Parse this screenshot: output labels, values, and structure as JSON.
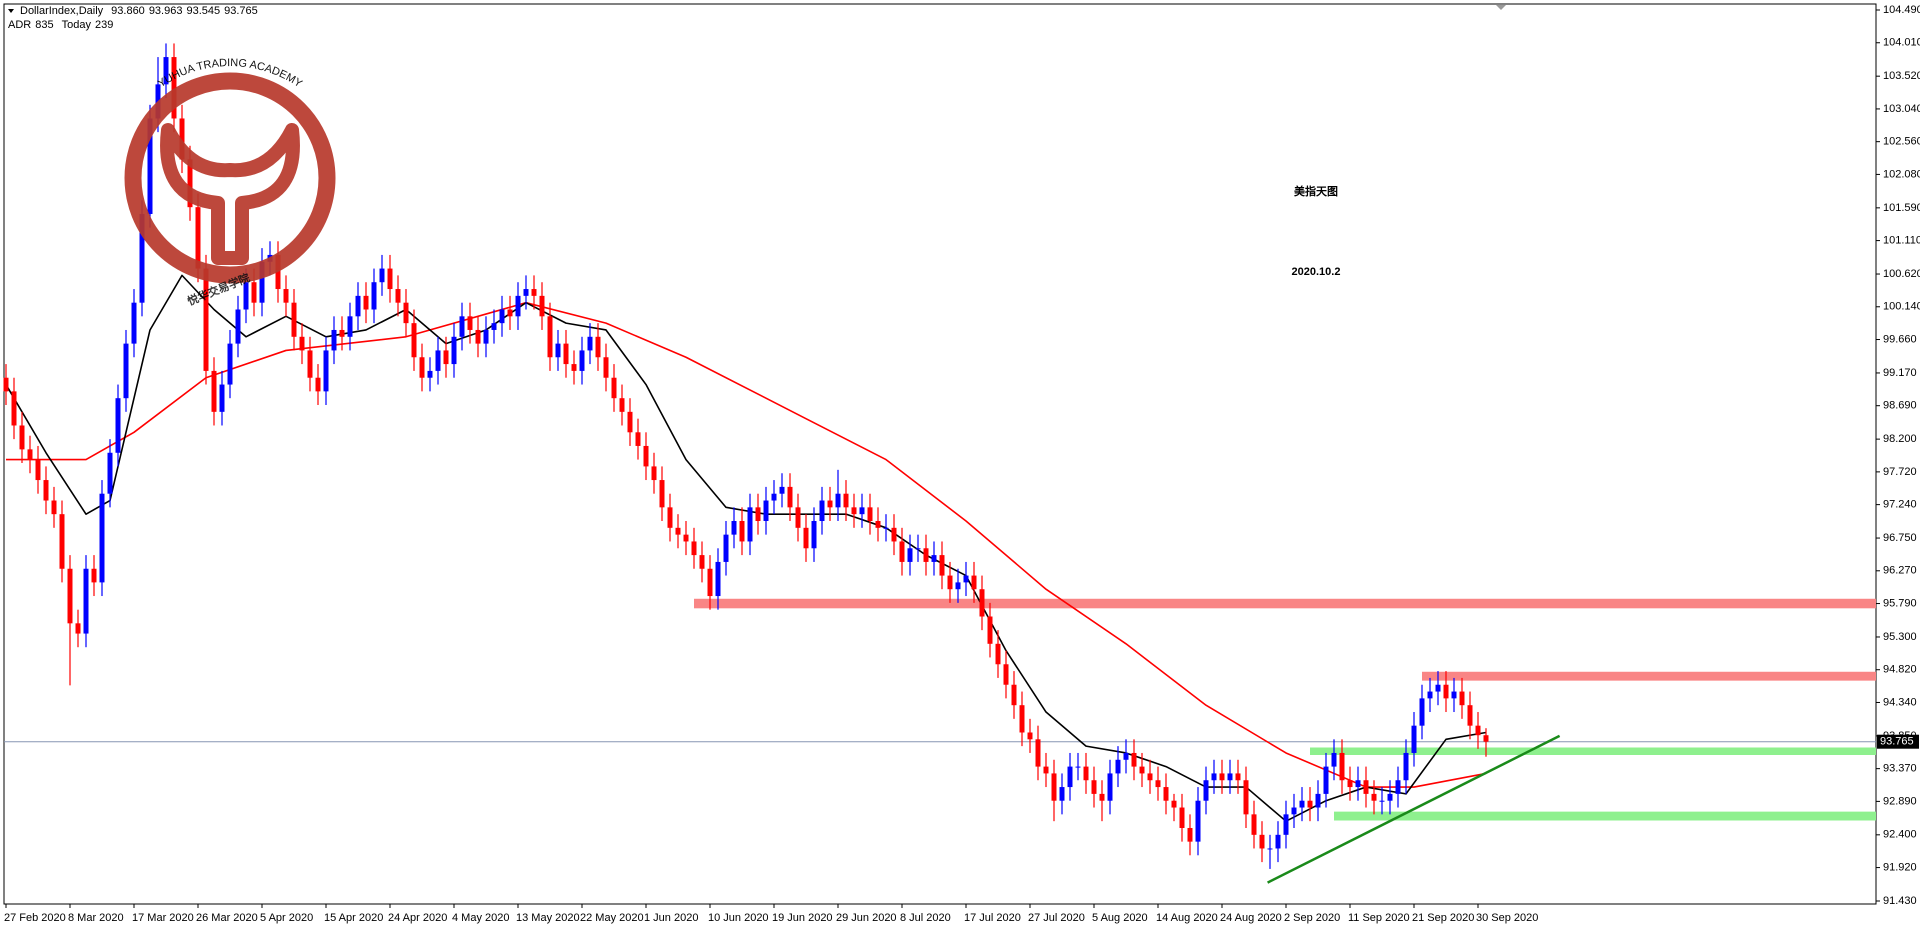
{
  "chart_data": {
    "type": "candlestick",
    "symbol": "DollarIndex,Daily",
    "ohlc_labels": [
      "93.860",
      "93.963",
      "93.545",
      "93.765"
    ],
    "indicators": [
      {
        "name": "ADR",
        "value": 835
      },
      {
        "name": "Today",
        "value": 239
      }
    ],
    "title": "美指天图",
    "subtitle": "2020.10.2",
    "up_color": "#0000ff",
    "down_color": "#ff0000",
    "ylim": [
      91.43,
      104.49
    ],
    "yticks": [
      {
        "value": 91.43,
        "label": "91.430"
      },
      {
        "value": 91.92,
        "label": "91.920"
      },
      {
        "value": 92.4,
        "label": "92.400"
      },
      {
        "value": 92.89,
        "label": "92.890"
      },
      {
        "value": 93.37,
        "label": "93.370"
      },
      {
        "value": 93.85,
        "label": "93.850"
      },
      {
        "value": 94.34,
        "label": "94.340"
      },
      {
        "value": 94.82,
        "label": "94.820"
      },
      {
        "value": 95.3,
        "label": "95.300"
      },
      {
        "value": 95.79,
        "label": "95.790"
      },
      {
        "value": 96.27,
        "label": "96.270"
      },
      {
        "value": 96.75,
        "label": "96.750"
      },
      {
        "value": 97.24,
        "label": "97.240"
      },
      {
        "value": 97.72,
        "label": "97.720"
      },
      {
        "value": 98.2,
        "label": "98.200"
      },
      {
        "value": 98.69,
        "label": "98.690"
      },
      {
        "value": 99.17,
        "label": "99.170"
      },
      {
        "value": 99.66,
        "label": "99.660"
      },
      {
        "value": 100.14,
        "label": "100.140"
      },
      {
        "value": 100.62,
        "label": "100.620"
      },
      {
        "value": 101.11,
        "label": "101.110"
      },
      {
        "value": 101.59,
        "label": "101.590"
      },
      {
        "value": 102.08,
        "label": "102.080"
      },
      {
        "value": 102.56,
        "label": "102.560"
      },
      {
        "value": 103.04,
        "label": "103.040"
      },
      {
        "value": 103.52,
        "label": "103.520"
      },
      {
        "value": 104.01,
        "label": "104.010"
      },
      {
        "value": 104.49,
        "label": "104.490"
      }
    ],
    "xticks": [
      {
        "value": 0,
        "label": "27 Feb 2020"
      },
      {
        "value": 8,
        "label": "8 Mar 2020"
      },
      {
        "value": 16,
        "label": "17 Mar 2020"
      },
      {
        "value": 24,
        "label": "26 Mar 2020"
      },
      {
        "value": 32,
        "label": "5 Apr 2020"
      },
      {
        "value": 40,
        "label": "15 Apr 2020"
      },
      {
        "value": 48,
        "label": "24 Apr 2020"
      },
      {
        "value": 56,
        "label": "4 May 2020"
      },
      {
        "value": 64,
        "label": "13 May 2020"
      },
      {
        "value": 72,
        "label": "22 May 2020"
      },
      {
        "value": 80,
        "label": "1 Jun 2020"
      },
      {
        "value": 88,
        "label": "10 Jun 2020"
      },
      {
        "value": 96,
        "label": "19 Jun 2020"
      },
      {
        "value": 104,
        "label": "29 Jun 2020"
      },
      {
        "value": 112,
        "label": "8 Jul 2020"
      },
      {
        "value": 120,
        "label": "17 Jul 2020"
      },
      {
        "value": 128,
        "label": "27 Jul 2020"
      },
      {
        "value": 136,
        "label": "5 Aug 2020"
      },
      {
        "value": 144,
        "label": "14 Aug 2020"
      },
      {
        "value": 152,
        "label": "24 Aug 2020"
      },
      {
        "value": 160,
        "label": "2 Sep 2020"
      },
      {
        "value": 168,
        "label": "11 Sep 2020"
      },
      {
        "value": 176,
        "label": "21 Sep 2020"
      },
      {
        "value": 184,
        "label": "30 Sep 2020"
      }
    ],
    "open": [
      99.1,
      98.9,
      98.4,
      98.05,
      97.9,
      97.6,
      97.3,
      97.1,
      96.3,
      95.5,
      95.35,
      96.3,
      96.1,
      97.4,
      98.0,
      98.8,
      99.6,
      100.2,
      101.5,
      102.9,
      103.4,
      103.8,
      102.9,
      102.3,
      101.6,
      100.7,
      99.2,
      98.6,
      99.0,
      99.6,
      100.1,
      100.5,
      100.2,
      100.8,
      100.9,
      100.4,
      100.2,
      99.7,
      99.5,
      99.1,
      98.9,
      99.5,
      99.8,
      99.7,
      100.0,
      100.3,
      100.1,
      100.5,
      100.7,
      100.4,
      100.2,
      99.9,
      99.4,
      99.1,
      99.2,
      99.5,
      99.3,
      99.7,
      100.0,
      99.8,
      99.6,
      99.8,
      99.9,
      100.1,
      100.0,
      100.3,
      100.4,
      100.3,
      100.0,
      99.4,
      99.6,
      99.3,
      99.2,
      99.5,
      99.7,
      99.4,
      99.1,
      98.8,
      98.6,
      98.3,
      98.1,
      97.8,
      97.6,
      97.2,
      96.9,
      96.8,
      96.7,
      96.5,
      96.3,
      95.9,
      96.4,
      96.8,
      97.0,
      96.7,
      97.2,
      97.0,
      97.3,
      97.4,
      97.5,
      97.2,
      96.9,
      96.6,
      97.0,
      97.3,
      97.2,
      97.4,
      97.2,
      97.1,
      97.2,
      97.0,
      96.9,
      96.9,
      96.7,
      96.4,
      96.6,
      96.6,
      96.4,
      96.5,
      96.2,
      96.0,
      96.1,
      96.2,
      96.0,
      95.6,
      95.2,
      94.9,
      94.6,
      94.3,
      93.9,
      93.8,
      93.4,
      93.3,
      92.9,
      93.1,
      93.4,
      93.4,
      93.2,
      93.0,
      92.9,
      93.3,
      93.5,
      93.6,
      93.4,
      93.3,
      93.2,
      93.1,
      92.9,
      92.8,
      92.5,
      92.3,
      92.9,
      93.2,
      93.3,
      93.2,
      93.3,
      93.2,
      92.7,
      92.4,
      92.2,
      92.2,
      92.4,
      92.7,
      92.8,
      92.9,
      92.8,
      93.0,
      93.4,
      93.6,
      93.2,
      93.1,
      93.2,
      93.0,
      92.9,
      92.9,
      93.0,
      93.2,
      93.6,
      94.0,
      94.4,
      94.5,
      94.6,
      94.4,
      94.5,
      94.3,
      94.0,
      93.86
    ],
    "high": [
      99.3,
      99.1,
      98.6,
      98.25,
      98.1,
      97.8,
      97.5,
      97.3,
      96.5,
      95.7,
      96.5,
      96.5,
      97.6,
      98.2,
      99.0,
      99.8,
      100.4,
      101.7,
      103.1,
      103.8,
      104.0,
      104.0,
      103.1,
      102.5,
      101.8,
      100.9,
      99.4,
      99.2,
      99.8,
      100.3,
      100.7,
      100.7,
      101.0,
      101.1,
      101.1,
      100.6,
      100.4,
      99.9,
      99.7,
      99.3,
      99.7,
      100.0,
      100.0,
      100.2,
      100.5,
      100.5,
      100.7,
      100.9,
      100.9,
      100.6,
      100.4,
      100.1,
      99.6,
      99.4,
      99.7,
      99.7,
      99.9,
      100.2,
      100.2,
      100.0,
      100.0,
      100.1,
      100.3,
      100.3,
      100.5,
      100.6,
      100.6,
      100.5,
      100.2,
      99.8,
      99.8,
      99.5,
      99.7,
      99.9,
      99.9,
      99.6,
      99.3,
      99.0,
      98.8,
      98.5,
      98.3,
      98.0,
      97.8,
      97.4,
      97.1,
      97.0,
      96.9,
      96.7,
      96.5,
      96.6,
      97.0,
      97.2,
      97.2,
      97.4,
      97.4,
      97.5,
      97.6,
      97.7,
      97.7,
      97.4,
      97.1,
      97.2,
      97.5,
      97.5,
      97.75,
      97.6,
      97.4,
      97.4,
      97.4,
      97.2,
      97.1,
      97.1,
      96.9,
      96.8,
      96.8,
      96.8,
      96.7,
      96.7,
      96.4,
      96.3,
      96.4,
      96.4,
      96.2,
      95.8,
      95.4,
      95.1,
      94.8,
      94.5,
      94.1,
      94.0,
      93.6,
      93.5,
      93.3,
      93.6,
      93.6,
      93.6,
      93.4,
      93.2,
      93.5,
      93.7,
      93.8,
      93.8,
      93.6,
      93.5,
      93.4,
      93.3,
      93.0,
      93.0,
      92.7,
      93.1,
      93.4,
      93.5,
      93.5,
      93.5,
      93.5,
      93.4,
      92.9,
      92.6,
      92.4,
      92.6,
      92.9,
      93.0,
      93.1,
      93.1,
      93.2,
      93.6,
      93.8,
      93.8,
      93.4,
      93.4,
      93.4,
      93.2,
      93.1,
      93.2,
      93.4,
      93.8,
      94.2,
      94.6,
      94.7,
      94.8,
      94.8,
      94.7,
      94.7,
      94.5,
      94.2,
      93.963
    ],
    "low": [
      98.7,
      98.2,
      97.85,
      97.7,
      97.4,
      97.1,
      96.9,
      96.1,
      94.59,
      95.15,
      95.15,
      95.9,
      95.9,
      97.2,
      97.8,
      98.6,
      99.4,
      100.0,
      101.3,
      102.7,
      103.2,
      102.7,
      102.1,
      101.4,
      100.5,
      99.0,
      98.4,
      98.4,
      98.8,
      99.4,
      99.9,
      100.0,
      100.0,
      100.6,
      100.2,
      100.0,
      99.5,
      99.3,
      98.9,
      98.7,
      98.7,
      99.3,
      99.5,
      99.5,
      99.8,
      99.9,
      99.9,
      100.3,
      100.2,
      100.0,
      99.7,
      99.2,
      98.9,
      98.9,
      99.0,
      99.1,
      99.1,
      99.5,
      99.6,
      99.4,
      99.4,
      99.6,
      99.7,
      99.8,
      99.8,
      100.1,
      100.1,
      99.8,
      99.2,
      99.2,
      99.1,
      99.0,
      99.0,
      99.3,
      99.2,
      98.9,
      98.6,
      98.4,
      98.1,
      97.9,
      97.6,
      97.4,
      97.0,
      96.7,
      96.6,
      96.5,
      96.3,
      96.1,
      95.7,
      95.7,
      96.2,
      96.6,
      96.5,
      96.5,
      96.8,
      96.8,
      97.1,
      97.2,
      97.0,
      96.7,
      96.4,
      96.4,
      96.8,
      97.0,
      97.0,
      97.0,
      96.9,
      96.9,
      96.8,
      96.7,
      96.7,
      96.5,
      96.2,
      96.2,
      96.4,
      96.2,
      96.2,
      96.0,
      95.8,
      95.8,
      95.9,
      95.8,
      95.4,
      95.0,
      94.7,
      94.4,
      94.1,
      93.7,
      93.6,
      93.2,
      93.1,
      92.6,
      92.7,
      92.9,
      93.2,
      93.0,
      92.8,
      92.6,
      92.7,
      93.1,
      93.3,
      93.2,
      93.1,
      93.0,
      92.9,
      92.7,
      92.6,
      92.3,
      92.1,
      92.1,
      92.7,
      93.0,
      93.0,
      93.0,
      93.0,
      92.5,
      92.2,
      92.0,
      91.9,
      92.0,
      92.2,
      92.5,
      92.6,
      92.6,
      92.6,
      92.8,
      93.2,
      93.0,
      92.9,
      92.9,
      92.8,
      92.7,
      92.7,
      92.7,
      92.8,
      93.0,
      93.4,
      93.8,
      94.2,
      94.3,
      94.2,
      94.2,
      94.1,
      93.8,
      93.66,
      93.545
    ],
    "close": [
      98.9,
      98.4,
      98.05,
      97.9,
      97.6,
      97.3,
      97.1,
      96.3,
      95.5,
      95.35,
      96.3,
      96.1,
      97.4,
      98.0,
      98.8,
      99.6,
      100.2,
      101.5,
      102.9,
      103.4,
      103.8,
      102.9,
      102.3,
      101.6,
      100.7,
      99.2,
      98.6,
      99.0,
      99.6,
      100.1,
      100.5,
      100.2,
      100.8,
      100.9,
      100.4,
      100.2,
      99.7,
      99.5,
      99.1,
      98.9,
      99.5,
      99.8,
      99.7,
      100.0,
      100.3,
      100.1,
      100.5,
      100.7,
      100.4,
      100.2,
      99.9,
      99.4,
      99.1,
      99.2,
      99.5,
      99.3,
      99.7,
      100.0,
      99.8,
      99.6,
      99.8,
      99.9,
      100.1,
      100.0,
      100.3,
      100.4,
      100.3,
      100.0,
      99.4,
      99.6,
      99.3,
      99.2,
      99.5,
      99.7,
      99.4,
      99.1,
      98.8,
      98.6,
      98.3,
      98.1,
      97.8,
      97.6,
      97.2,
      96.9,
      96.8,
      96.7,
      96.5,
      96.3,
      95.9,
      96.4,
      96.8,
      97.0,
      96.7,
      97.2,
      97.0,
      97.3,
      97.4,
      97.5,
      97.2,
      96.9,
      96.6,
      97.0,
      97.3,
      97.2,
      97.4,
      97.2,
      97.1,
      97.2,
      97.0,
      96.9,
      96.9,
      96.7,
      96.4,
      96.6,
      96.6,
      96.4,
      96.5,
      96.2,
      96.0,
      96.1,
      96.2,
      96.0,
      95.6,
      95.2,
      94.9,
      94.6,
      94.3,
      93.9,
      93.8,
      93.4,
      93.3,
      92.9,
      93.1,
      93.4,
      93.4,
      93.2,
      93.0,
      92.9,
      93.3,
      93.5,
      93.6,
      93.4,
      93.3,
      93.2,
      93.1,
      92.9,
      92.8,
      92.5,
      92.3,
      92.9,
      93.2,
      93.3,
      93.2,
      93.3,
      93.2,
      92.7,
      92.4,
      92.2,
      92.2,
      92.4,
      92.7,
      92.8,
      92.9,
      92.8,
      93.0,
      93.4,
      93.6,
      93.2,
      93.1,
      93.2,
      93.0,
      92.9,
      92.9,
      93.0,
      93.2,
      93.6,
      94.0,
      94.4,
      94.5,
      94.6,
      94.4,
      94.5,
      94.3,
      94.0,
      93.86,
      93.765
    ],
    "ma_fast": {
      "color": "#000000",
      "x": [
        0,
        5,
        10,
        13,
        18,
        22,
        26,
        30,
        35,
        40,
        45,
        50,
        55,
        60,
        65,
        70,
        75,
        80,
        85,
        90,
        95,
        100,
        105,
        110,
        115,
        120,
        125,
        130,
        135,
        140,
        145,
        150,
        155,
        160,
        165,
        170,
        175,
        180,
        185
      ],
      "values": [
        99.0,
        98.0,
        97.1,
        97.3,
        99.8,
        100.6,
        100.1,
        99.7,
        100.0,
        99.7,
        99.8,
        100.1,
        99.6,
        99.8,
        100.2,
        99.9,
        99.8,
        99.0,
        97.9,
        97.2,
        97.1,
        97.1,
        97.1,
        96.9,
        96.5,
        96.2,
        95.1,
        94.2,
        93.7,
        93.6,
        93.4,
        93.1,
        93.1,
        92.6,
        92.9,
        93.1,
        93.0,
        93.8,
        93.9
      ]
    },
    "ma_slow": {
      "color": "#ff0000",
      "x": [
        0,
        10,
        16,
        25,
        35,
        50,
        65,
        75,
        85,
        100,
        110,
        120,
        130,
        140,
        150,
        160,
        170,
        176,
        185
      ],
      "values": [
        97.9,
        97.9,
        98.3,
        99.1,
        99.5,
        99.7,
        100.2,
        99.9,
        99.4,
        98.5,
        97.9,
        97.0,
        96.0,
        95.2,
        94.3,
        93.6,
        93.1,
        93.1,
        93.3
      ]
    },
    "trendline": {
      "color": "#1a8a1a",
      "x": [
        157.7,
        194.2
      ],
      "values": [
        91.7,
        93.85
      ]
    },
    "zones": [
      {
        "from": 86,
        "low": 95.72,
        "high": 95.86,
        "color": "#f98585"
      },
      {
        "from": 177,
        "low": 94.66,
        "high": 94.79,
        "color": "#f98585"
      },
      {
        "from": 163,
        "low": 93.57,
        "high": 93.68,
        "color": "#8ef08e"
      },
      {
        "from": 166,
        "low": 92.61,
        "high": 92.74,
        "color": "#8ef08e"
      }
    ]
  },
  "watermark": {
    "text_en": "YUHUA TRADING ACADEMY",
    "text_cn": "悦华交易学院"
  }
}
